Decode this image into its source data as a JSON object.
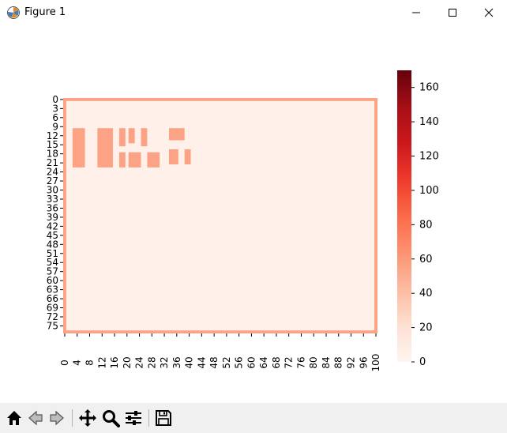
{
  "window": {
    "title": "Figure 1",
    "controls": [
      "minimize",
      "maximize",
      "close"
    ]
  },
  "toolbar": {
    "buttons": [
      {
        "name": "home-icon"
      },
      {
        "name": "back-icon"
      },
      {
        "name": "forward-icon"
      },
      {
        "name": "pan-icon"
      },
      {
        "name": "zoom-icon"
      },
      {
        "name": "configure-subplots-icon"
      },
      {
        "name": "save-icon"
      }
    ]
  },
  "chart_data": {
    "type": "heatmap",
    "colormap": "Reds",
    "x_ticks": [
      "0",
      "4",
      "8",
      "12",
      "16",
      "20",
      "24",
      "28",
      "32",
      "36",
      "40",
      "44",
      "48",
      "52",
      "56",
      "60",
      "64",
      "68",
      "72",
      "76",
      "80",
      "84",
      "88",
      "92",
      "96",
      "100"
    ],
    "y_ticks": [
      "0",
      "3",
      "6",
      "9",
      "12",
      "15",
      "18",
      "21",
      "24",
      "27",
      "30",
      "33",
      "36",
      "39",
      "42",
      "45",
      "48",
      "51",
      "54",
      "57",
      "60",
      "63",
      "66",
      "69",
      "72",
      "75"
    ],
    "x_range": [
      0,
      101
    ],
    "y_range": [
      0,
      78
    ],
    "colorbar": {
      "ticks": [
        "0",
        "20",
        "40",
        "60",
        "80",
        "100",
        "120",
        "140",
        "160"
      ],
      "range": [
        0,
        170
      ]
    },
    "border_value": 55,
    "background_value": 5,
    "blocks": [
      {
        "x0": 3,
        "x1": 7,
        "y0": 10,
        "y1": 23,
        "v": 55
      },
      {
        "x0": 11,
        "x1": 16,
        "y0": 10,
        "y1": 23,
        "v": 55
      },
      {
        "x0": 18,
        "x1": 20,
        "y0": 10,
        "y1": 16,
        "v": 55
      },
      {
        "x0": 21,
        "x1": 23,
        "y0": 10,
        "y1": 15,
        "v": 55
      },
      {
        "x0": 25,
        "x1": 27,
        "y0": 10,
        "y1": 16,
        "v": 55
      },
      {
        "x0": 18,
        "x1": 20,
        "y0": 18,
        "y1": 23,
        "v": 55
      },
      {
        "x0": 21,
        "x1": 25,
        "y0": 18,
        "y1": 23,
        "v": 55
      },
      {
        "x0": 27,
        "x1": 31,
        "y0": 18,
        "y1": 23,
        "v": 55
      },
      {
        "x0": 34,
        "x1": 39,
        "y0": 10,
        "y1": 14,
        "v": 55
      },
      {
        "x0": 34,
        "x1": 37,
        "y0": 17,
        "y1": 22,
        "v": 55
      },
      {
        "x0": 39,
        "x1": 41,
        "y0": 17,
        "y1": 22,
        "v": 55
      }
    ]
  }
}
